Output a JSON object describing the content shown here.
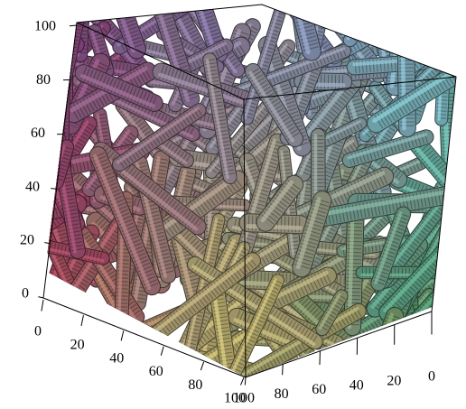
{
  "axes": {
    "vertical": {
      "ticks": [
        0,
        20,
        40,
        60,
        80,
        100
      ]
    },
    "front": {
      "ticks": [
        0,
        20,
        40,
        60,
        80,
        100
      ]
    },
    "side": {
      "ticks": [
        100,
        80,
        60,
        40,
        20,
        0
      ]
    }
  }
}
